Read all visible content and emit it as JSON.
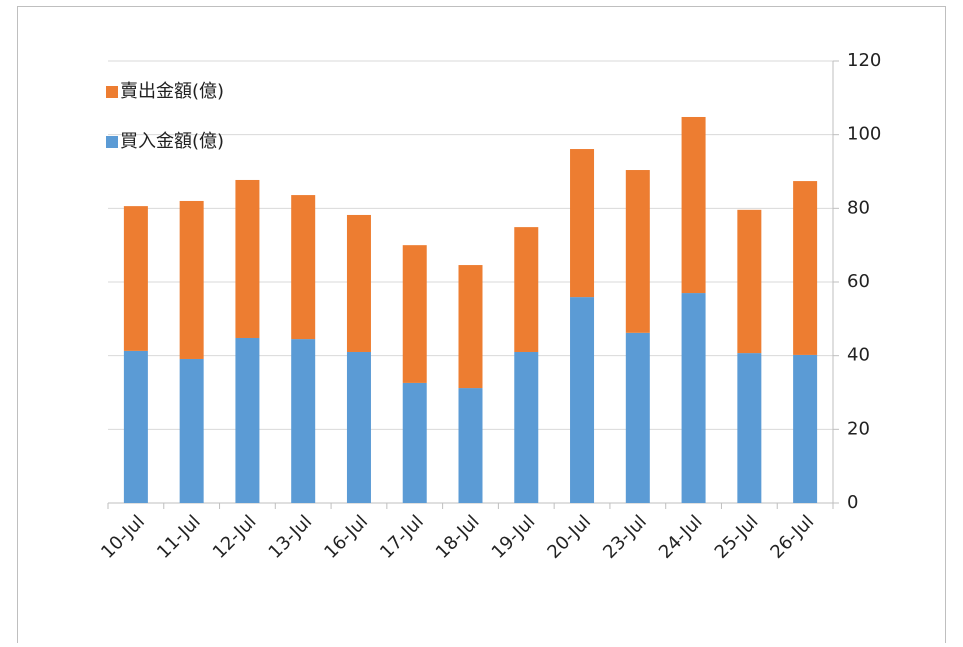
{
  "chart_data": {
    "type": "stacked_bar",
    "categories": [
      "10-Jul",
      "11-Jul",
      "12-Jul",
      "13-Jul",
      "16-Jul",
      "17-Jul",
      "18-Jul",
      "19-Jul",
      "20-Jul",
      "23-Jul",
      "24-Jul",
      "25-Jul",
      "26-Jul"
    ],
    "series": [
      {
        "name": "買入金額(億)",
        "color": "#5b9bd5",
        "values": [
          41.3,
          39.1,
          44.8,
          44.5,
          41.0,
          32.6,
          31.2,
          41.0,
          55.9,
          46.2,
          57.0,
          40.7,
          40.2
        ]
      },
      {
        "name": "賣出金額(億)",
        "color": "#ed7d31",
        "values": [
          39.3,
          42.9,
          42.9,
          39.1,
          37.2,
          37.4,
          33.4,
          33.9,
          40.2,
          44.2,
          47.8,
          38.9,
          47.2
        ]
      }
    ],
    "ylim": [
      0,
      120
    ],
    "yticks": [
      0,
      20,
      40,
      60,
      80,
      100,
      120
    ],
    "grid": true,
    "y_axis_side": "right",
    "legend": "top-left"
  }
}
